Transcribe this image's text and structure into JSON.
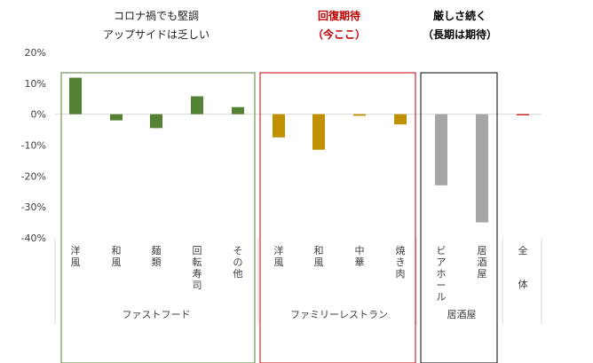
{
  "chart_data": {
    "type": "bar",
    "categories": [
      "洋風",
      "和風",
      "麺類",
      "回転寿司",
      "その他",
      "洋風",
      "和風",
      "中華",
      "焼き肉",
      "ビアホール",
      "居酒屋",
      "全体"
    ],
    "values": [
      11.8,
      -2.0,
      -4.5,
      5.8,
      2.3,
      -7.5,
      -11.5,
      -0.5,
      -3.3,
      -23.0,
      -35.0,
      -0.3
    ],
    "bar_colors": [
      "#548235",
      "#548235",
      "#548235",
      "#548235",
      "#548235",
      "#bf9000",
      "#bf9000",
      "#bf9000",
      "#bf9000",
      "#a6a6a6",
      "#a6a6a6",
      "#c00000"
    ],
    "ylim": [
      -40,
      20
    ],
    "yticks": [
      "20%",
      "10%",
      "0%",
      "-10%",
      "-20%",
      "-30%",
      "-40%"
    ],
    "groups": [
      "ファストフード",
      "ファミリーレストラン",
      "居酒屋"
    ],
    "annotations": [
      {
        "line1": "コロナ禍でも堅調",
        "line2": "アップサイドは乏しい",
        "color": "#222222",
        "box_color": "#548235"
      },
      {
        "line1": "回復期待",
        "line2": "（今ここ）",
        "color": "#c00000",
        "box_color": "#c00000"
      },
      {
        "line1": "厳しさ続く",
        "line2": "（長期は期待）",
        "color": "#000000",
        "box_color": "#000000"
      }
    ]
  }
}
